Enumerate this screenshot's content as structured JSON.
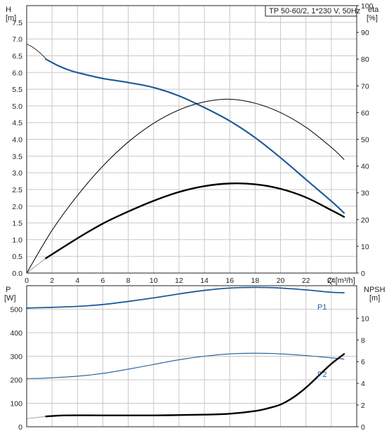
{
  "chart_data": [
    {
      "type": "line",
      "title": "TP 50-60/2, 1*230 V, 50Hz",
      "xlabel": "Q [m³/h]",
      "ylabel": "H\n[m]",
      "ylabel_name": "H",
      "ylabel_unit": "[m]",
      "y2label_name": "eta",
      "y2label_unit": "[%]",
      "xlim": [
        0,
        26
      ],
      "ylim": [
        0,
        8
      ],
      "y2lim": [
        0,
        100
      ],
      "x_ticks": [
        "0",
        "2",
        "4",
        "6",
        "8",
        "10",
        "12",
        "14",
        "16",
        "18",
        "20",
        "22",
        "24"
      ],
      "y_ticks": [
        "0.0",
        "0.5",
        "1.0",
        "1.5",
        "2.0",
        "2.5",
        "3.0",
        "3.5",
        "4.0",
        "4.5",
        "5.0",
        "5.5",
        "6.0",
        "6.5",
        "7.0",
        "7.5"
      ],
      "y2_ticks": [
        "0",
        "10",
        "20",
        "30",
        "40",
        "50",
        "60",
        "70",
        "80",
        "90",
        "100"
      ],
      "grid": true,
      "series": [
        {
          "color": "#1f5b99",
          "x": [
            1.5,
            2.5,
            3.5,
            4.5,
            6,
            8,
            10,
            12,
            14,
            16,
            18,
            20,
            22,
            24,
            25
          ],
          "y": [
            6.4,
            6.2,
            6.05,
            5.95,
            5.82,
            5.7,
            5.55,
            5.3,
            4.95,
            4.55,
            4.05,
            3.45,
            2.8,
            2.15,
            1.8
          ]
        },
        {
          "color": "#333333",
          "x": [
            0,
            0.5,
            1.0,
            1.5
          ],
          "y": [
            6.85,
            6.75,
            6.6,
            6.42
          ]
        },
        {
          "color": "#000000",
          "x": [
            1.5,
            4,
            6,
            8,
            10,
            12,
            14,
            16,
            18,
            20,
            22,
            24,
            25
          ],
          "y2": [
            5.5,
            13,
            18.5,
            23,
            27,
            30.3,
            32.5,
            33.5,
            33.2,
            31.5,
            28.3,
            23.5,
            21
          ]
        },
        {
          "color": "#000000",
          "x": [
            0,
            2,
            4,
            6,
            8,
            10,
            12,
            14,
            16,
            18,
            20,
            22,
            24,
            25
          ],
          "y2": [
            0,
            16,
            29,
            40,
            49,
            56,
            61,
            64,
            65,
            63.5,
            60,
            54.5,
            47,
            42.5
          ]
        },
        {
          "color": "#888888",
          "x": [
            0,
            1.5
          ],
          "y2": [
            0,
            5.5
          ]
        }
      ]
    },
    {
      "type": "line",
      "xlim": [
        0,
        26
      ],
      "ylim": [
        0,
        600
      ],
      "y2lim": [
        0,
        13
      ],
      "ylabel_name": "P",
      "ylabel_unit": "[W]",
      "y2label_name": "NPSH",
      "y2label_unit": "[m]",
      "y_ticks": [
        "0",
        "100",
        "200",
        "300",
        "400",
        "500"
      ],
      "y2_ticks": [
        "0",
        "2",
        "4",
        "6",
        "8",
        "10"
      ],
      "grid": true,
      "series": [
        {
          "name": "P1",
          "color": "#1f5b99",
          "x": [
            0,
            1.5,
            4,
            6,
            8,
            10,
            12,
            14,
            16,
            18,
            20,
            22,
            24,
            25
          ],
          "y": [
            505,
            507,
            512,
            520,
            533,
            548,
            565,
            580,
            590,
            593,
            590,
            582,
            572,
            570
          ]
        },
        {
          "name": "P2",
          "color": "#1f5b99",
          "x": [
            0,
            1.5,
            4,
            6,
            8,
            10,
            12,
            14,
            16,
            18,
            20,
            22,
            24,
            25
          ],
          "y": [
            205,
            207,
            215,
            227,
            245,
            265,
            285,
            300,
            310,
            313,
            310,
            303,
            293,
            288
          ]
        },
        {
          "color": "#000000",
          "x": [
            1.5,
            3,
            6,
            10,
            14,
            16,
            18,
            19,
            20,
            21,
            22,
            23,
            24,
            25
          ],
          "y2": [
            0.95,
            1.05,
            1.05,
            1.05,
            1.12,
            1.2,
            1.45,
            1.7,
            2.05,
            2.7,
            3.6,
            4.7,
            5.8,
            6.7
          ]
        },
        {
          "color": "#888888",
          "x": [
            0,
            1.5
          ],
          "y2": [
            0.75,
            0.95
          ]
        }
      ]
    }
  ]
}
